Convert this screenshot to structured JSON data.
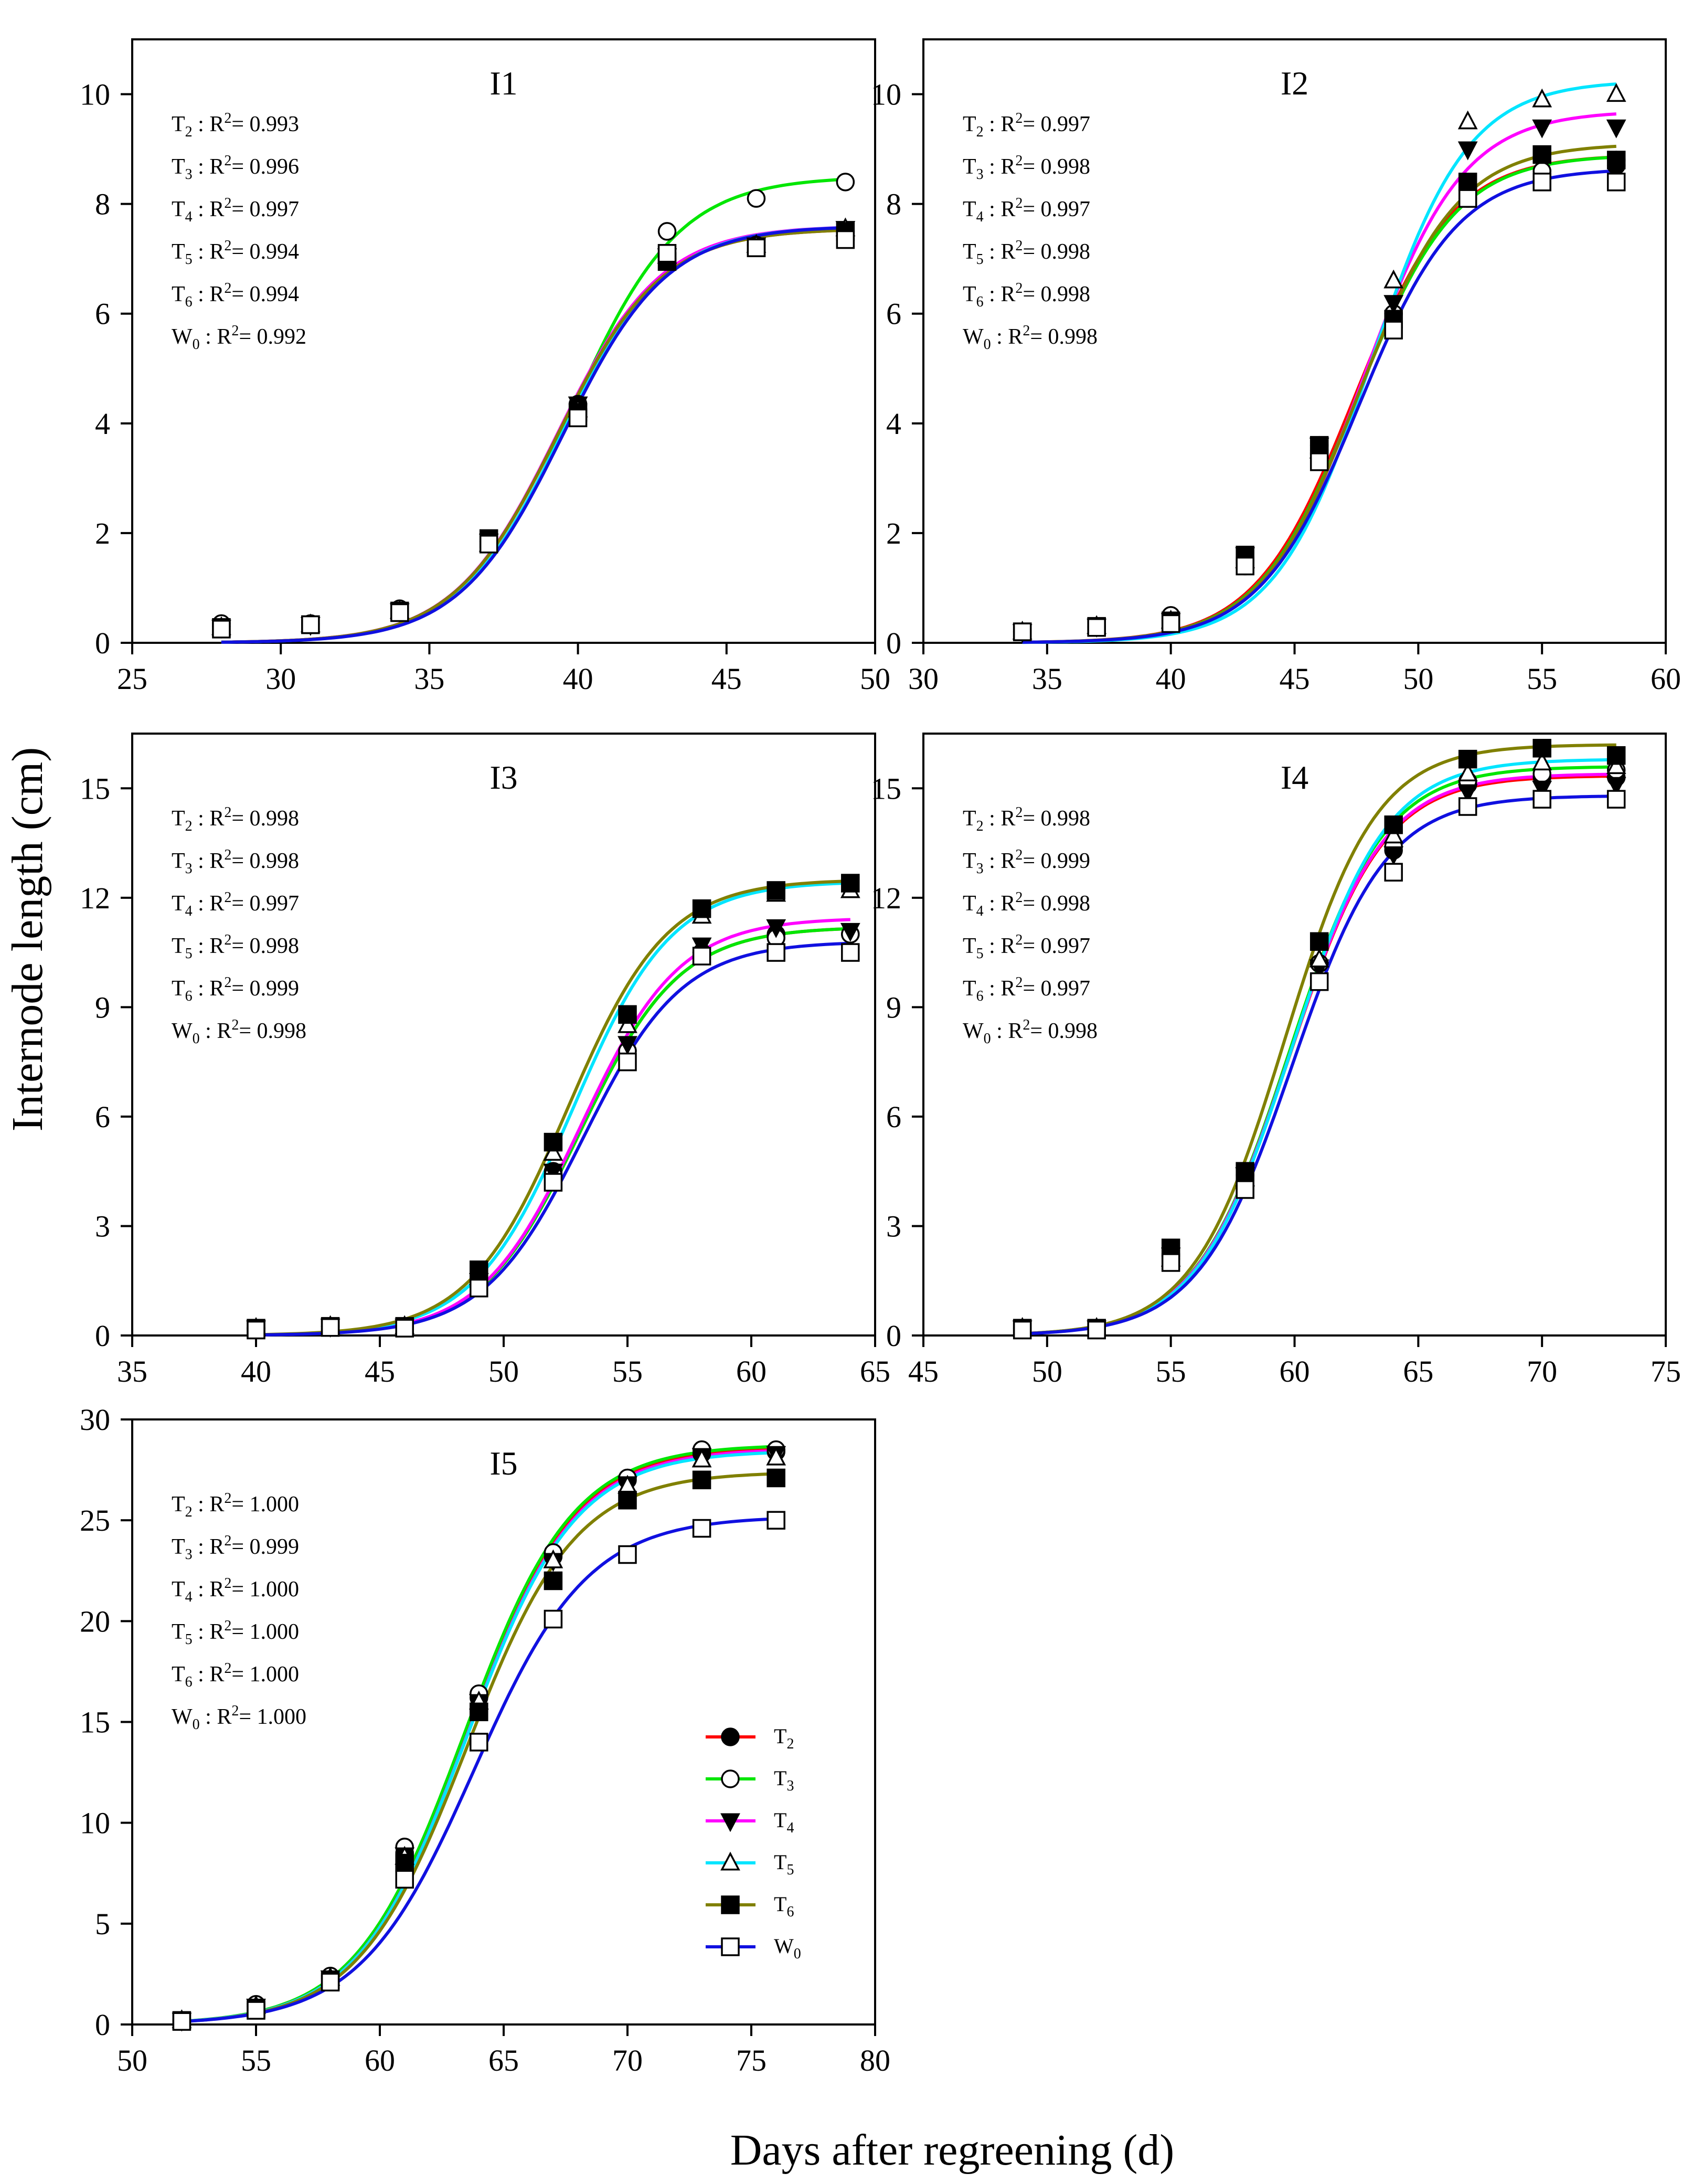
{
  "figure": {
    "ylabel": "Internode length (cm)",
    "xlabel": "Days after regreening (d)"
  },
  "chart_data": [
    {
      "type": "scatter",
      "title": "I1",
      "xlim": [
        25,
        50
      ],
      "xticks": [
        25,
        30,
        35,
        40,
        45,
        50
      ],
      "ylim": [
        0,
        11
      ],
      "yticks": [
        0,
        2,
        4,
        6,
        8,
        10
      ],
      "x": [
        28,
        31,
        34,
        37,
        40,
        43,
        46,
        49
      ],
      "r2": [
        {
          "name": "T",
          "sub": "2",
          "value": "0.993"
        },
        {
          "name": "T",
          "sub": "3",
          "value": "0.996"
        },
        {
          "name": "T",
          "sub": "4",
          "value": "0.997"
        },
        {
          "name": "T",
          "sub": "5",
          "value": "0.994"
        },
        {
          "name": "T",
          "sub": "6",
          "value": "0.994"
        },
        {
          "name": "W",
          "sub": "0",
          "value": "0.992"
        }
      ],
      "series": [
        {
          "name": "T2",
          "values": [
            0.3,
            0.33,
            0.58,
            1.85,
            4.35,
            7.0,
            7.25,
            7.5
          ],
          "fit": {
            "a": 7.55,
            "x0": 39.3,
            "b": 1.75
          }
        },
        {
          "name": "T3",
          "values": [
            0.35,
            0.35,
            0.62,
            1.85,
            4.25,
            7.5,
            8.1,
            8.4
          ],
          "fit": {
            "a": 8.5,
            "x0": 39.8,
            "b": 1.8
          }
        },
        {
          "name": "T4",
          "values": [
            0.28,
            0.33,
            0.58,
            1.85,
            4.35,
            7.05,
            7.25,
            7.55
          ],
          "fit": {
            "a": 7.6,
            "x0": 39.3,
            "b": 1.75
          }
        },
        {
          "name": "T5",
          "values": [
            0.28,
            0.33,
            0.58,
            1.8,
            4.25,
            7.05,
            7.25,
            7.55
          ],
          "fit": {
            "a": 7.6,
            "x0": 39.45,
            "b": 1.75
          }
        },
        {
          "name": "T6",
          "values": [
            0.28,
            0.33,
            0.58,
            1.9,
            4.2,
            6.95,
            7.2,
            7.5
          ],
          "fit": {
            "a": 7.55,
            "x0": 39.3,
            "b": 1.75
          }
        },
        {
          "name": "W0",
          "values": [
            0.25,
            0.33,
            0.55,
            1.8,
            4.1,
            7.1,
            7.2,
            7.35
          ],
          "fit": {
            "a": 7.6,
            "x0": 39.5,
            "b": 1.75
          }
        }
      ]
    },
    {
      "type": "scatter",
      "title": "I2",
      "xlim": [
        30,
        60
      ],
      "xticks": [
        30,
        35,
        40,
        45,
        50,
        55,
        60
      ],
      "ylim": [
        0,
        11
      ],
      "yticks": [
        0,
        2,
        4,
        6,
        8,
        10
      ],
      "x": [
        34,
        37,
        40,
        43,
        46,
        49,
        52,
        55,
        58
      ],
      "r2": [
        {
          "name": "T",
          "sub": "2",
          "value": "0.997"
        },
        {
          "name": "T",
          "sub": "3",
          "value": "0.998"
        },
        {
          "name": "T",
          "sub": "4",
          "value": "0.997"
        },
        {
          "name": "T",
          "sub": "5",
          "value": "0.998"
        },
        {
          "name": "T",
          "sub": "6",
          "value": "0.998"
        },
        {
          "name": "W",
          "sub": "0",
          "value": "0.998"
        }
      ],
      "series": [
        {
          "name": "T2",
          "values": [
            0.2,
            0.28,
            0.4,
            1.5,
            3.6,
            6.0,
            8.3,
            8.6,
            8.7
          ],
          "fit": {
            "a": 8.9,
            "x0": 47.4,
            "b": 2.0
          }
        },
        {
          "name": "T3",
          "values": [
            0.2,
            0.3,
            0.5,
            1.4,
            3.5,
            6.0,
            8.1,
            8.6,
            8.8
          ],
          "fit": {
            "a": 8.9,
            "x0": 47.5,
            "b": 2.0
          }
        },
        {
          "name": "T4",
          "values": [
            0.2,
            0.3,
            0.4,
            1.6,
            3.6,
            6.2,
            9.0,
            9.4,
            9.4
          ],
          "fit": {
            "a": 9.7,
            "x0": 47.8,
            "b": 2.0
          }
        },
        {
          "name": "T5",
          "values": [
            0.2,
            0.3,
            0.4,
            1.5,
            3.5,
            6.6,
            9.5,
            9.9,
            10.0
          ],
          "fit": {
            "a": 10.25,
            "x0": 48.1,
            "b": 1.95
          }
        },
        {
          "name": "T6",
          "values": [
            0.2,
            0.3,
            0.4,
            1.6,
            3.6,
            5.9,
            8.4,
            8.9,
            8.8
          ],
          "fit": {
            "a": 9.1,
            "x0": 47.6,
            "b": 2.0
          }
        },
        {
          "name": "W0",
          "values": [
            0.2,
            0.28,
            0.35,
            1.4,
            3.3,
            5.7,
            8.1,
            8.4,
            8.4
          ],
          "fit": {
            "a": 8.65,
            "x0": 47.6,
            "b": 2.0
          }
        }
      ]
    },
    {
      "type": "scatter",
      "title": "I3",
      "xlim": [
        35,
        65
      ],
      "xticks": [
        35,
        40,
        45,
        50,
        55,
        60,
        65
      ],
      "ylim": [
        0,
        16.5
      ],
      "yticks": [
        0,
        3,
        6,
        9,
        12,
        15
      ],
      "x": [
        40,
        43,
        46,
        49,
        52,
        55,
        58,
        61,
        64
      ],
      "r2": [
        {
          "name": "T",
          "sub": "2",
          "value": "0.998"
        },
        {
          "name": "T",
          "sub": "3",
          "value": "0.998"
        },
        {
          "name": "T",
          "sub": "4",
          "value": "0.997"
        },
        {
          "name": "T",
          "sub": "5",
          "value": "0.998"
        },
        {
          "name": "T",
          "sub": "6",
          "value": "0.999"
        },
        {
          "name": "W",
          "sub": "0",
          "value": "0.998"
        }
      ],
      "series": [
        {
          "name": "T2",
          "values": [
            0.2,
            0.25,
            0.25,
            1.5,
            4.5,
            7.8,
            10.5,
            11.0,
            11.0
          ],
          "fit": {
            "a": 11.2,
            "x0": 53.1,
            "b": 2.0
          }
        },
        {
          "name": "T3",
          "values": [
            0.2,
            0.25,
            0.25,
            1.5,
            4.4,
            7.8,
            10.5,
            10.9,
            11.0
          ],
          "fit": {
            "a": 11.2,
            "x0": 53.1,
            "b": 2.0
          }
        },
        {
          "name": "T4",
          "values": [
            0.2,
            0.25,
            0.25,
            1.5,
            4.5,
            8.0,
            10.7,
            11.2,
            11.1
          ],
          "fit": {
            "a": 11.45,
            "x0": 53.1,
            "b": 2.0
          }
        },
        {
          "name": "T5",
          "values": [
            0.2,
            0.25,
            0.25,
            1.6,
            5.0,
            8.5,
            11.5,
            12.1,
            12.2
          ],
          "fit": {
            "a": 12.45,
            "x0": 52.8,
            "b": 2.0
          }
        },
        {
          "name": "T6",
          "values": [
            0.2,
            0.25,
            0.25,
            1.8,
            5.3,
            8.8,
            11.7,
            12.2,
            12.4
          ],
          "fit": {
            "a": 12.5,
            "x0": 52.6,
            "b": 2.0
          }
        },
        {
          "name": "W0",
          "values": [
            0.15,
            0.22,
            0.2,
            1.3,
            4.2,
            7.5,
            10.4,
            10.5,
            10.5
          ],
          "fit": {
            "a": 10.8,
            "x0": 53.2,
            "b": 2.0
          }
        }
      ]
    },
    {
      "type": "scatter",
      "title": "I4",
      "xlim": [
        45,
        75
      ],
      "xticks": [
        45,
        50,
        55,
        60,
        65,
        70,
        75
      ],
      "ylim": [
        0,
        16.5
      ],
      "yticks": [
        0,
        3,
        6,
        9,
        12,
        15
      ],
      "x": [
        49,
        52,
        55,
        58,
        61,
        64,
        67,
        70,
        73
      ],
      "r2": [
        {
          "name": "T",
          "sub": "2",
          "value": "0.998"
        },
        {
          "name": "T",
          "sub": "3",
          "value": "0.999"
        },
        {
          "name": "T",
          "sub": "4",
          "value": "0.998"
        },
        {
          "name": "T",
          "sub": "5",
          "value": "0.997"
        },
        {
          "name": "T",
          "sub": "6",
          "value": "0.997"
        },
        {
          "name": "W",
          "sub": "0",
          "value": "0.998"
        }
      ],
      "series": [
        {
          "name": "T2",
          "values": [
            0.2,
            0.2,
            2.2,
            4.4,
            10.2,
            13.3,
            15.1,
            15.3,
            15.3
          ],
          "fit": {
            "a": 15.35,
            "x0": 59.8,
            "b": 1.9
          }
        },
        {
          "name": "T3",
          "values": [
            0.2,
            0.2,
            2.1,
            4.4,
            10.2,
            13.4,
            15.2,
            15.4,
            15.5
          ],
          "fit": {
            "a": 15.6,
            "x0": 59.8,
            "b": 1.9
          }
        },
        {
          "name": "T4",
          "values": [
            0.2,
            0.2,
            2.2,
            4.4,
            10.1,
            13.2,
            14.9,
            15.0,
            15.1
          ],
          "fit": {
            "a": 15.4,
            "x0": 59.8,
            "b": 1.9
          }
        },
        {
          "name": "T5",
          "values": [
            0.2,
            0.2,
            2.1,
            4.3,
            10.3,
            13.7,
            15.4,
            15.7,
            15.6
          ],
          "fit": {
            "a": 15.8,
            "x0": 59.9,
            "b": 1.9
          }
        },
        {
          "name": "T6",
          "values": [
            0.2,
            0.2,
            2.4,
            4.5,
            10.8,
            14.0,
            15.8,
            16.1,
            15.9
          ],
          "fit": {
            "a": 16.2,
            "x0": 59.6,
            "b": 1.85
          }
        },
        {
          "name": "W0",
          "values": [
            0.15,
            0.15,
            2.0,
            4.0,
            9.7,
            12.7,
            14.5,
            14.7,
            14.7
          ],
          "fit": {
            "a": 14.8,
            "x0": 59.9,
            "b": 1.9
          }
        }
      ]
    },
    {
      "type": "scatter",
      "title": "I5",
      "xlim": [
        50,
        80
      ],
      "xticks": [
        50,
        55,
        60,
        65,
        70,
        75,
        80
      ],
      "ylim": [
        0,
        30
      ],
      "yticks": [
        0,
        5,
        10,
        15,
        20,
        25,
        30
      ],
      "x": [
        52,
        55,
        58,
        61,
        64,
        67,
        70,
        73,
        76
      ],
      "r2": [
        {
          "name": "T",
          "sub": "2",
          "value": "1.000"
        },
        {
          "name": "T",
          "sub": "3",
          "value": "0.999"
        },
        {
          "name": "T",
          "sub": "4",
          "value": "1.000"
        },
        {
          "name": "T",
          "sub": "5",
          "value": "1.000"
        },
        {
          "name": "T",
          "sub": "6",
          "value": "1.000"
        },
        {
          "name": "W",
          "sub": "0",
          "value": "1.000"
        }
      ],
      "series": [
        {
          "name": "T2",
          "values": [
            0.2,
            0.9,
            2.3,
            8.5,
            16.2,
            23.2,
            27.0,
            28.3,
            28.4
          ],
          "fit": {
            "a": 28.7,
            "x0": 63.5,
            "b": 2.2
          }
        },
        {
          "name": "T3",
          "values": [
            0.2,
            1.0,
            2.4,
            8.8,
            16.4,
            23.4,
            27.1,
            28.5,
            28.5
          ],
          "fit": {
            "a": 28.75,
            "x0": 63.4,
            "b": 2.2
          }
        },
        {
          "name": "T4",
          "values": [
            0.2,
            0.9,
            2.3,
            8.4,
            16.0,
            23.0,
            26.8,
            28.2,
            28.3
          ],
          "fit": {
            "a": 28.55,
            "x0": 63.5,
            "b": 2.2
          }
        },
        {
          "name": "T5",
          "values": [
            0.2,
            0.9,
            2.3,
            8.3,
            16.0,
            23.0,
            26.7,
            28.0,
            28.1
          ],
          "fit": {
            "a": 28.45,
            "x0": 63.5,
            "b": 2.2
          }
        },
        {
          "name": "T6",
          "values": [
            0.2,
            0.8,
            2.2,
            8.0,
            15.5,
            22.0,
            26.0,
            27.0,
            27.1
          ],
          "fit": {
            "a": 27.4,
            "x0": 63.5,
            "b": 2.2
          }
        },
        {
          "name": "W0",
          "values": [
            0.15,
            0.7,
            2.1,
            7.2,
            14.0,
            20.1,
            23.3,
            24.6,
            25.0
          ],
          "fit": {
            "a": 25.2,
            "x0": 63.8,
            "b": 2.3
          }
        }
      ]
    }
  ],
  "legend": {
    "position": "inside I5 panel, lower-right",
    "items": [
      {
        "name": "T",
        "sub": "2",
        "series": "T2",
        "color": "#ff0000",
        "marker": "filled-circle"
      },
      {
        "name": "T",
        "sub": "3",
        "series": "T3",
        "color": "#00e600",
        "marker": "open-circle"
      },
      {
        "name": "T",
        "sub": "4",
        "series": "T4",
        "color": "#ff00ff",
        "marker": "filled-triangle-down"
      },
      {
        "name": "T",
        "sub": "5",
        "series": "T5",
        "color": "#00e5ff",
        "marker": "open-triangle-up"
      },
      {
        "name": "T",
        "sub": "6",
        "series": "T6",
        "color": "#808000",
        "marker": "filled-square"
      },
      {
        "name": "W",
        "sub": "0",
        "series": "W0",
        "color": "#1010e0",
        "marker": "open-square"
      }
    ]
  }
}
